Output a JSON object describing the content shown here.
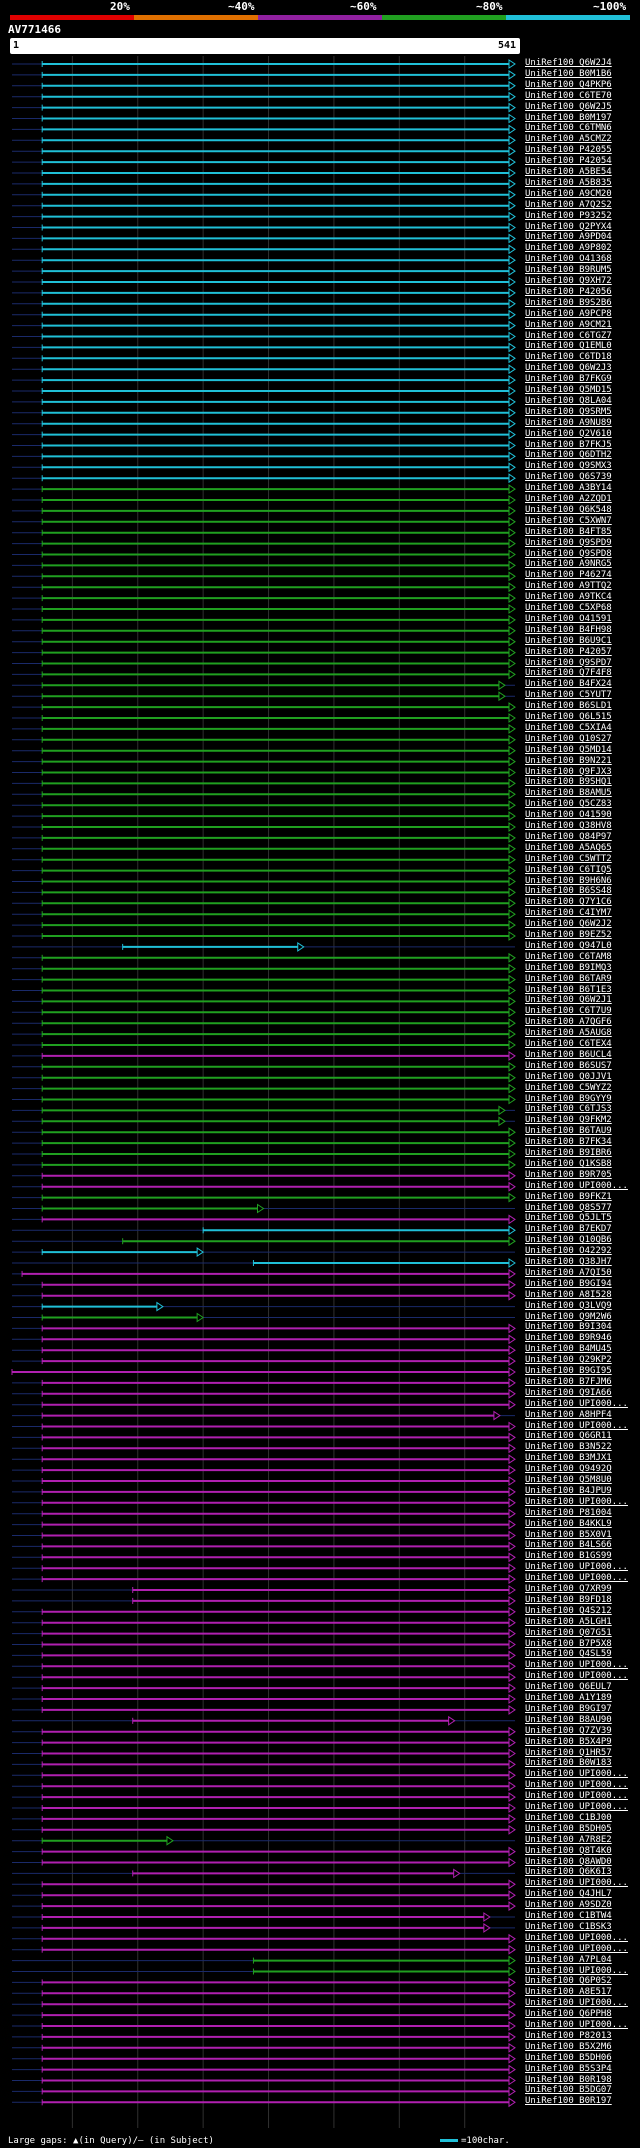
{
  "title": "AV771466",
  "scale_labels": [
    "20%",
    "~40%",
    "~60%",
    "~80%",
    "~100%"
  ],
  "scale_colors": [
    "#e00000",
    "#e07000",
    "#9020a0",
    "#20a020",
    "#20c0d8"
  ],
  "query_start": "1",
  "query_end": "541",
  "footer": {
    "gaps": "Large gaps: ▲(in Query)/— (in Subject)",
    "legend": "=100char."
  },
  "tracks": [
    {
      "l": "UniRef100_Q6W2J4",
      "c": "c",
      "s": 0.06,
      "e": 1
    },
    {
      "l": "UniRef100_B0M1B6",
      "c": "c",
      "s": 0.06,
      "e": 1
    },
    {
      "l": "UniRef100_Q4PKP6",
      "c": "c",
      "s": 0.06,
      "e": 1
    },
    {
      "l": "UniRef100_C6TE70",
      "c": "c",
      "s": 0.06,
      "e": 1
    },
    {
      "l": "UniRef100_Q6W2J5",
      "c": "c",
      "s": 0.06,
      "e": 1
    },
    {
      "l": "UniRef100_B0M197",
      "c": "c",
      "s": 0.06,
      "e": 1
    },
    {
      "l": "UniRef100_C6TMN6",
      "c": "c",
      "s": 0.06,
      "e": 1
    },
    {
      "l": "UniRef100_A5CMZ2",
      "c": "c",
      "s": 0.06,
      "e": 1
    },
    {
      "l": "UniRef100_P42055",
      "c": "c",
      "s": 0.06,
      "e": 1
    },
    {
      "l": "UniRef100_P42054",
      "c": "c",
      "s": 0.06,
      "e": 1
    },
    {
      "l": "UniRef100_A5BE54",
      "c": "c",
      "s": 0.06,
      "e": 1
    },
    {
      "l": "UniRef100_A5B835",
      "c": "c",
      "s": 0.06,
      "e": 1
    },
    {
      "l": "UniRef100_A9CM20",
      "c": "c",
      "s": 0.06,
      "e": 1
    },
    {
      "l": "UniRef100_A7Q2S2",
      "c": "c",
      "s": 0.06,
      "e": 1
    },
    {
      "l": "UniRef100_P93252",
      "c": "c",
      "s": 0.06,
      "e": 1
    },
    {
      "l": "UniRef100_Q2PYX4",
      "c": "c",
      "s": 0.06,
      "e": 1
    },
    {
      "l": "UniRef100_A9PD04",
      "c": "c",
      "s": 0.06,
      "e": 1
    },
    {
      "l": "UniRef100_A9P802",
      "c": "c",
      "s": 0.06,
      "e": 1
    },
    {
      "l": "UniRef100_O41368",
      "c": "c",
      "s": 0.06,
      "e": 1
    },
    {
      "l": "UniRef100_B9RUM5",
      "c": "c",
      "s": 0.06,
      "e": 1
    },
    {
      "l": "UniRef100_Q9XH72",
      "c": "c",
      "s": 0.06,
      "e": 1
    },
    {
      "l": "UniRef100_P42056",
      "c": "c",
      "s": 0.06,
      "e": 1
    },
    {
      "l": "UniRef100_B9S2B6",
      "c": "c",
      "s": 0.06,
      "e": 1
    },
    {
      "l": "UniRef100_A9PCP8",
      "c": "c",
      "s": 0.06,
      "e": 1
    },
    {
      "l": "UniRef100_A9CM21",
      "c": "c",
      "s": 0.06,
      "e": 1
    },
    {
      "l": "UniRef100_C6TGZ7",
      "c": "c",
      "s": 0.06,
      "e": 1
    },
    {
      "l": "UniRef100_Q1EML0",
      "c": "c",
      "s": 0.06,
      "e": 1
    },
    {
      "l": "UniRef100_C6TD18",
      "c": "c",
      "s": 0.06,
      "e": 1
    },
    {
      "l": "UniRef100_Q6W2J3",
      "c": "c",
      "s": 0.06,
      "e": 1
    },
    {
      "l": "UniRef100_B7FKG9",
      "c": "c",
      "s": 0.06,
      "e": 1
    },
    {
      "l": "UniRef100_Q5MD15",
      "c": "c",
      "s": 0.06,
      "e": 1
    },
    {
      "l": "UniRef100_Q8LA04",
      "c": "c",
      "s": 0.06,
      "e": 1
    },
    {
      "l": "UniRef100_Q9SRM5",
      "c": "c",
      "s": 0.06,
      "e": 1
    },
    {
      "l": "UniRef100_A9NU89",
      "c": "c",
      "s": 0.06,
      "e": 1
    },
    {
      "l": "UniRef100_Q2V610",
      "c": "c",
      "s": 0.06,
      "e": 1
    },
    {
      "l": "UniRef100_B7FKJ5",
      "c": "c",
      "s": 0.06,
      "e": 1
    },
    {
      "l": "UniRef100_Q6DTH2",
      "c": "c",
      "s": 0.06,
      "e": 1
    },
    {
      "l": "UniRef100_Q9SMX3",
      "c": "c",
      "s": 0.06,
      "e": 1
    },
    {
      "l": "UniRef100_Q6S739",
      "c": "c",
      "s": 0.06,
      "e": 1
    },
    {
      "l": "UniRef100_A3BY14",
      "c": "g",
      "s": 0.06,
      "e": 1
    },
    {
      "l": "UniRef100_A2ZQD1",
      "c": "g",
      "s": 0.06,
      "e": 1
    },
    {
      "l": "UniRef100_Q6K548",
      "c": "g",
      "s": 0.06,
      "e": 1
    },
    {
      "l": "UniRef100_C5XWN7",
      "c": "g",
      "s": 0.06,
      "e": 1
    },
    {
      "l": "UniRef100_B4FT85",
      "c": "g",
      "s": 0.06,
      "e": 1
    },
    {
      "l": "UniRef100_Q9SPD9",
      "c": "g",
      "s": 0.06,
      "e": 1
    },
    {
      "l": "UniRef100_Q9SPD8",
      "c": "g",
      "s": 0.06,
      "e": 1
    },
    {
      "l": "UniRef100_A9NRG5",
      "c": "g",
      "s": 0.06,
      "e": 1
    },
    {
      "l": "UniRef100_P46274",
      "c": "g",
      "s": 0.06,
      "e": 1
    },
    {
      "l": "UniRef100_A9TTQ2",
      "c": "g",
      "s": 0.06,
      "e": 1
    },
    {
      "l": "UniRef100_A9TKC4",
      "c": "g",
      "s": 0.06,
      "e": 1
    },
    {
      "l": "UniRef100_C5XP68",
      "c": "g",
      "s": 0.06,
      "e": 1
    },
    {
      "l": "UniRef100_O41591",
      "c": "g",
      "s": 0.06,
      "e": 1
    },
    {
      "l": "UniRef100_B4FH98",
      "c": "g",
      "s": 0.06,
      "e": 1
    },
    {
      "l": "UniRef100_B6U9C1",
      "c": "g",
      "s": 0.06,
      "e": 1
    },
    {
      "l": "UniRef100_P42057",
      "c": "g",
      "s": 0.06,
      "e": 1
    },
    {
      "l": "UniRef100_Q9SPD7",
      "c": "g",
      "s": 0.06,
      "e": 1
    },
    {
      "l": "UniRef100_Q7F4F8",
      "c": "g",
      "s": 0.06,
      "e": 1
    },
    {
      "l": "UniRef100_B4FX24",
      "c": "g",
      "s": 0.06,
      "e": 0.98
    },
    {
      "l": "UniRef100_C5YUT7",
      "c": "g",
      "s": 0.06,
      "e": 0.98
    },
    {
      "l": "UniRef100_B6SLD1",
      "c": "g",
      "s": 0.06,
      "e": 1
    },
    {
      "l": "UniRef100_Q6L515",
      "c": "g",
      "s": 0.06,
      "e": 1
    },
    {
      "l": "UniRef100_C5XIA4",
      "c": "g",
      "s": 0.06,
      "e": 1
    },
    {
      "l": "UniRef100_Q10S27",
      "c": "g",
      "s": 0.06,
      "e": 1
    },
    {
      "l": "UniRef100_Q5MD14",
      "c": "g",
      "s": 0.06,
      "e": 1
    },
    {
      "l": "UniRef100_B9N221",
      "c": "g",
      "s": 0.06,
      "e": 1
    },
    {
      "l": "UniRef100_Q9FJX3",
      "c": "g",
      "s": 0.06,
      "e": 1
    },
    {
      "l": "UniRef100_B9SHQ1",
      "c": "g",
      "s": 0.06,
      "e": 1
    },
    {
      "l": "UniRef100_B8AMU5",
      "c": "g",
      "s": 0.06,
      "e": 1
    },
    {
      "l": "UniRef100_Q5CZ83",
      "c": "g",
      "s": 0.06,
      "e": 1
    },
    {
      "l": "UniRef100_O41590",
      "c": "g",
      "s": 0.06,
      "e": 1
    },
    {
      "l": "UniRef100_Q38HV8",
      "c": "g",
      "s": 0.06,
      "e": 1
    },
    {
      "l": "UniRef100_Q84P97",
      "c": "g",
      "s": 0.06,
      "e": 1
    },
    {
      "l": "UniRef100_A5AQ65",
      "c": "g",
      "s": 0.06,
      "e": 1
    },
    {
      "l": "UniRef100_C5WTT2",
      "c": "g",
      "s": 0.06,
      "e": 1
    },
    {
      "l": "UniRef100_C6TIQ5",
      "c": "g",
      "s": 0.06,
      "e": 1
    },
    {
      "l": "UniRef100_B9H6N6",
      "c": "g",
      "s": 0.06,
      "e": 1
    },
    {
      "l": "UniRef100_B6SS48",
      "c": "g",
      "s": 0.06,
      "e": 1
    },
    {
      "l": "UniRef100_Q7Y1C6",
      "c": "g",
      "s": 0.06,
      "e": 1
    },
    {
      "l": "UniRef100_C4IYM7",
      "c": "g",
      "s": 0.06,
      "e": 1
    },
    {
      "l": "UniRef100_Q6W2J2",
      "c": "g",
      "s": 0.06,
      "e": 1
    },
    {
      "l": "UniRef100_B9EZ52",
      "c": "g",
      "s": 0.06,
      "e": 1
    },
    {
      "l": "UniRef100_Q947L0",
      "c": "c",
      "s": 0.22,
      "e": 0.58
    },
    {
      "l": "UniRef100_C6TAM8",
      "c": "g",
      "s": 0.06,
      "e": 1
    },
    {
      "l": "UniRef100_B9IMQ3",
      "c": "g",
      "s": 0.06,
      "e": 1
    },
    {
      "l": "UniRef100_B6TAR9",
      "c": "g",
      "s": 0.06,
      "e": 1
    },
    {
      "l": "UniRef100_B6T1E3",
      "c": "g",
      "s": 0.06,
      "e": 1
    },
    {
      "l": "UniRef100_Q6W2J1",
      "c": "g",
      "s": 0.06,
      "e": 1
    },
    {
      "l": "UniRef100_C6T7U9",
      "c": "g",
      "s": 0.06,
      "e": 1
    },
    {
      "l": "UniRef100_A7QGF6",
      "c": "g",
      "s": 0.06,
      "e": 1
    },
    {
      "l": "UniRef100_A5AUG8",
      "c": "g",
      "s": 0.06,
      "e": 1
    },
    {
      "l": "UniRef100_C6TEX4",
      "c": "g",
      "s": 0.06,
      "e": 1
    },
    {
      "l": "UniRef100_B6UCL4",
      "c": "m",
      "s": 0.06,
      "e": 1
    },
    {
      "l": "UniRef100_B6SUS7",
      "c": "g",
      "s": 0.06,
      "e": 1
    },
    {
      "l": "UniRef100_Q0JJV1",
      "c": "g",
      "s": 0.06,
      "e": 1
    },
    {
      "l": "UniRef100_C5WYZ2",
      "c": "g",
      "s": 0.06,
      "e": 1
    },
    {
      "l": "UniRef100_B9GYY9",
      "c": "g",
      "s": 0.06,
      "e": 1
    },
    {
      "l": "UniRef100_C6TJS3",
      "c": "g",
      "s": 0.06,
      "e": 0.98
    },
    {
      "l": "UniRef100_Q9FKM2",
      "c": "g",
      "s": 0.06,
      "e": 0.98
    },
    {
      "l": "UniRef100_B6TAU9",
      "c": "g",
      "s": 0.06,
      "e": 1
    },
    {
      "l": "UniRef100_B7FK34",
      "c": "g",
      "s": 0.06,
      "e": 1
    },
    {
      "l": "UniRef100_B9IBR6",
      "c": "g",
      "s": 0.06,
      "e": 1
    },
    {
      "l": "UniRef100_Q1KSB8",
      "c": "g",
      "s": 0.06,
      "e": 1
    },
    {
      "l": "UniRef100_B9R705",
      "c": "m",
      "s": 0.06,
      "e": 1
    },
    {
      "l": "UniRef100_UPI000...",
      "c": "m",
      "s": 0.06,
      "e": 1
    },
    {
      "l": "UniRef100_B9FKZ1",
      "c": "g",
      "s": 0.06,
      "e": 1
    },
    {
      "l": "UniRef100_Q8S577",
      "c": "g",
      "s": 0.06,
      "e": 0.5
    },
    {
      "l": "UniRef100_Q5JLT5",
      "c": "m",
      "s": 0.06,
      "e": 1
    },
    {
      "l": "UniRef100_B7EKD7",
      "c": "c",
      "s": 0.38,
      "e": 1
    },
    {
      "l": "UniRef100_Q10QB6",
      "c": "g",
      "s": 0.22,
      "e": 1
    },
    {
      "l": "UniRef100_O42292",
      "c": "c",
      "s": 0.06,
      "e": 0.38
    },
    {
      "l": "UniRef100_Q38JH7",
      "c": "c",
      "s": 0.48,
      "e": 1
    },
    {
      "l": "UniRef100_A7QI50",
      "c": "m",
      "s": 0.02,
      "e": 1
    },
    {
      "l": "UniRef100_B9GI94",
      "c": "m",
      "s": 0.06,
      "e": 1
    },
    {
      "l": "UniRef100_A8I528",
      "c": "m",
      "s": 0.06,
      "e": 1
    },
    {
      "l": "UniRef100_Q3LVQ9",
      "c": "c",
      "s": 0.06,
      "e": 0.3
    },
    {
      "l": "UniRef100_Q9M2W6",
      "c": "g",
      "s": 0.06,
      "e": 0.38
    },
    {
      "l": "UniRef100_B9I304",
      "c": "m",
      "s": 0.06,
      "e": 1
    },
    {
      "l": "UniRef100_B9R946",
      "c": "m",
      "s": 0.06,
      "e": 1
    },
    {
      "l": "UniRef100_B4MU45",
      "c": "m",
      "s": 0.06,
      "e": 1
    },
    {
      "l": "UniRef100_Q29KP2",
      "c": "m",
      "s": 0.06,
      "e": 1
    },
    {
      "l": "UniRef100_B9GI95",
      "c": "m",
      "s": 0,
      "e": 1
    },
    {
      "l": "UniRef100_B7FJM6",
      "c": "m",
      "s": 0.06,
      "e": 1
    },
    {
      "l": "UniRef100_Q9IA66",
      "c": "m",
      "s": 0.06,
      "e": 1
    },
    {
      "l": "UniRef100_UPI000...",
      "c": "m",
      "s": 0.06,
      "e": 1
    },
    {
      "l": "UniRef100_A8HPF4",
      "c": "m",
      "s": 0.06,
      "e": 0.97
    },
    {
      "l": "UniRef100_UPI000...",
      "c": "m",
      "s": 0.06,
      "e": 1
    },
    {
      "l": "UniRef100_Q6GR11",
      "c": "m",
      "s": 0.06,
      "e": 1
    },
    {
      "l": "UniRef100_B3N522",
      "c": "m",
      "s": 0.06,
      "e": 1
    },
    {
      "l": "UniRef100_B3MJX1",
      "c": "m",
      "s": 0.06,
      "e": 1
    },
    {
      "l": "UniRef100_Q9492Q",
      "c": "m",
      "s": 0.06,
      "e": 1
    },
    {
      "l": "UniRef100_Q5M8U0",
      "c": "m",
      "s": 0.06,
      "e": 1
    },
    {
      "l": "UniRef100_B4JPU9",
      "c": "m",
      "s": 0.06,
      "e": 1
    },
    {
      "l": "UniRef100_UPI000...",
      "c": "m",
      "s": 0.06,
      "e": 1
    },
    {
      "l": "UniRef100_P81004",
      "c": "m",
      "s": 0.06,
      "e": 1
    },
    {
      "l": "UniRef100_B4KKL9",
      "c": "m",
      "s": 0.06,
      "e": 1
    },
    {
      "l": "UniRef100_B5X0V1",
      "c": "m",
      "s": 0.06,
      "e": 1
    },
    {
      "l": "UniRef100_B4LS66",
      "c": "m",
      "s": 0.06,
      "e": 1
    },
    {
      "l": "UniRef100_B1GS99",
      "c": "m",
      "s": 0.06,
      "e": 1
    },
    {
      "l": "UniRef100_UPI000...",
      "c": "m",
      "s": 0.06,
      "e": 1
    },
    {
      "l": "UniRef100_UPI000...",
      "c": "m",
      "s": 0.06,
      "e": 1
    },
    {
      "l": "UniRef100_Q7XR99",
      "c": "m",
      "s": 0.24,
      "e": 1
    },
    {
      "l": "UniRef100_B9FD18",
      "c": "m",
      "s": 0.24,
      "e": 1
    },
    {
      "l": "UniRef100_Q4S212",
      "c": "m",
      "s": 0.06,
      "e": 1
    },
    {
      "l": "UniRef100_A5LGH1",
      "c": "m",
      "s": 0.06,
      "e": 1
    },
    {
      "l": "UniRef100_Q07G51",
      "c": "m",
      "s": 0.06,
      "e": 1
    },
    {
      "l": "UniRef100_B7P5X8",
      "c": "m",
      "s": 0.06,
      "e": 1
    },
    {
      "l": "UniRef100_Q4SL59",
      "c": "m",
      "s": 0.06,
      "e": 1
    },
    {
      "l": "UniRef100_UPI000...",
      "c": "m",
      "s": 0.06,
      "e": 1
    },
    {
      "l": "UniRef100_UPI000...",
      "c": "m",
      "s": 0.06,
      "e": 1
    },
    {
      "l": "UniRef100_Q6EUL7",
      "c": "m",
      "s": 0.06,
      "e": 1
    },
    {
      "l": "UniRef100_A1Y189",
      "c": "m",
      "s": 0.06,
      "e": 1
    },
    {
      "l": "UniRef100_B9GI97",
      "c": "m",
      "s": 0.06,
      "e": 1
    },
    {
      "l": "UniRef100_B8AU90",
      "c": "m",
      "s": 0.24,
      "e": 0.88
    },
    {
      "l": "UniRef100_Q7ZV39",
      "c": "m",
      "s": 0.06,
      "e": 1
    },
    {
      "l": "UniRef100_B5X4P9",
      "c": "m",
      "s": 0.06,
      "e": 1
    },
    {
      "l": "UniRef100_Q1HR57",
      "c": "m",
      "s": 0.06,
      "e": 1
    },
    {
      "l": "UniRef100_B0W183",
      "c": "m",
      "s": 0.06,
      "e": 1
    },
    {
      "l": "UniRef100_UPI000...",
      "c": "m",
      "s": 0.06,
      "e": 1
    },
    {
      "l": "UniRef100_UPI000...",
      "c": "m",
      "s": 0.06,
      "e": 1
    },
    {
      "l": "UniRef100_UPI000...",
      "c": "m",
      "s": 0.06,
      "e": 1
    },
    {
      "l": "UniRef100_UPI000...",
      "c": "m",
      "s": 0.06,
      "e": 1
    },
    {
      "l": "UniRef100_C1BJ00",
      "c": "m",
      "s": 0.06,
      "e": 1
    },
    {
      "l": "UniRef100_B5DH05",
      "c": "m",
      "s": 0.06,
      "e": 1
    },
    {
      "l": "UniRef100_A7R8E2",
      "c": "g",
      "s": 0.06,
      "e": 0.32
    },
    {
      "l": "UniRef100_Q8T4K0",
      "c": "m",
      "s": 0.06,
      "e": 1
    },
    {
      "l": "UniRef100_Q8AWD0",
      "c": "m",
      "s": 0.06,
      "e": 1
    },
    {
      "l": "UniRef100_Q6K6I3",
      "c": "m",
      "s": 0.24,
      "e": 0.89
    },
    {
      "l": "UniRef100_UPI000...",
      "c": "m",
      "s": 0.06,
      "e": 1
    },
    {
      "l": "UniRef100_Q4JHL7",
      "c": "m",
      "s": 0.06,
      "e": 1
    },
    {
      "l": "UniRef100_A9SDZ0",
      "c": "m",
      "s": 0.06,
      "e": 1
    },
    {
      "l": "UniRef100_C1BTW4",
      "c": "m",
      "s": 0.06,
      "e": 0.95
    },
    {
      "l": "UniRef100_C1BSK3",
      "c": "m",
      "s": 0.06,
      "e": 0.95
    },
    {
      "l": "UniRef100_UPI000...",
      "c": "m",
      "s": 0.06,
      "e": 1
    },
    {
      "l": "UniRef100_UPI000...",
      "c": "m",
      "s": 0.06,
      "e": 1
    },
    {
      "l": "UniRef100_A7PL04",
      "c": "g",
      "s": 0.48,
      "e": 1
    },
    {
      "l": "UniRef100_UPI000...",
      "c": "g",
      "s": 0.48,
      "e": 1
    },
    {
      "l": "UniRef100_Q6P0S2",
      "c": "m",
      "s": 0.06,
      "e": 1
    },
    {
      "l": "UniRef100_A8E517",
      "c": "m",
      "s": 0.06,
      "e": 1
    },
    {
      "l": "UniRef100_UPI000...",
      "c": "m",
      "s": 0.06,
      "e": 1
    },
    {
      "l": "UniRef100_Q6PPH8",
      "c": "m",
      "s": 0.06,
      "e": 1
    },
    {
      "l": "UniRef100_UPI000...",
      "c": "m",
      "s": 0.06,
      "e": 1
    },
    {
      "l": "UniRef100_P82013",
      "c": "m",
      "s": 0.06,
      "e": 1
    },
    {
      "l": "UniRef100_B5X2M6",
      "c": "m",
      "s": 0.06,
      "e": 1
    },
    {
      "l": "UniRef100_B5DH06",
      "c": "m",
      "s": 0.06,
      "e": 1
    },
    {
      "l": "UniRef100_B5S3P4",
      "c": "m",
      "s": 0.06,
      "e": 1
    },
    {
      "l": "UniRef100_B0R198",
      "c": "m",
      "s": 0.06,
      "e": 1
    },
    {
      "l": "UniRef100_B5DG07",
      "c": "m",
      "s": 0.06,
      "e": 1
    },
    {
      "l": "UniRef100_B0R197",
      "c": "m",
      "s": 0.06,
      "e": 1
    }
  ]
}
